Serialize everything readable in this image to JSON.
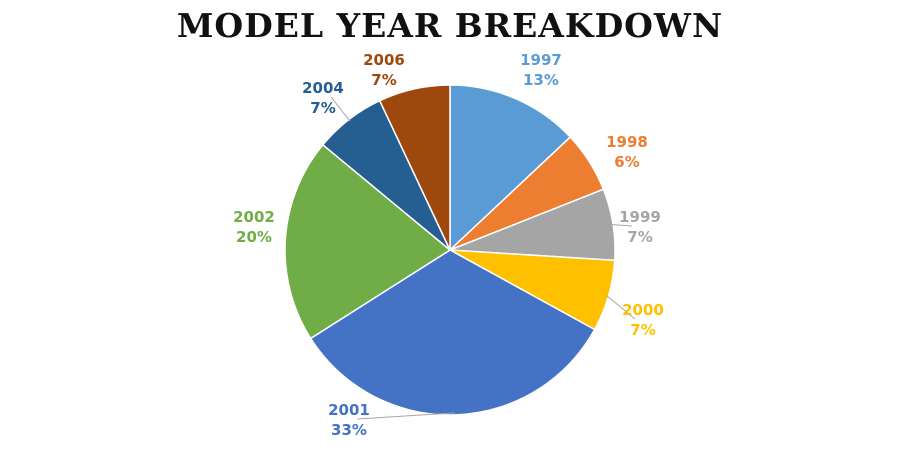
{
  "chart_data": {
    "type": "pie",
    "title": "MODEL YEAR BREAKDOWN",
    "slices": [
      {
        "label": "1997",
        "value": 13,
        "value_label": "13%",
        "color": "#5B9BD5"
      },
      {
        "label": "1998",
        "value": 6,
        "value_label": "6%",
        "color": "#ED7D31"
      },
      {
        "label": "1999",
        "value": 7,
        "value_label": "7%",
        "color": "#A5A5A5"
      },
      {
        "label": "2000",
        "value": 7,
        "value_label": "7%",
        "color": "#FFC000"
      },
      {
        "label": "2001",
        "value": 33,
        "value_label": "33%",
        "color": "#4472C4"
      },
      {
        "label": "2002",
        "value": 20,
        "value_label": "20%",
        "color": "#70AD47"
      },
      {
        "label": "2004",
        "value": 7,
        "value_label": "7%",
        "color": "#255E91"
      },
      {
        "label": "2006",
        "value": 7,
        "value_label": "7%",
        "color": "#9E480E"
      }
    ],
    "legend": "none"
  }
}
